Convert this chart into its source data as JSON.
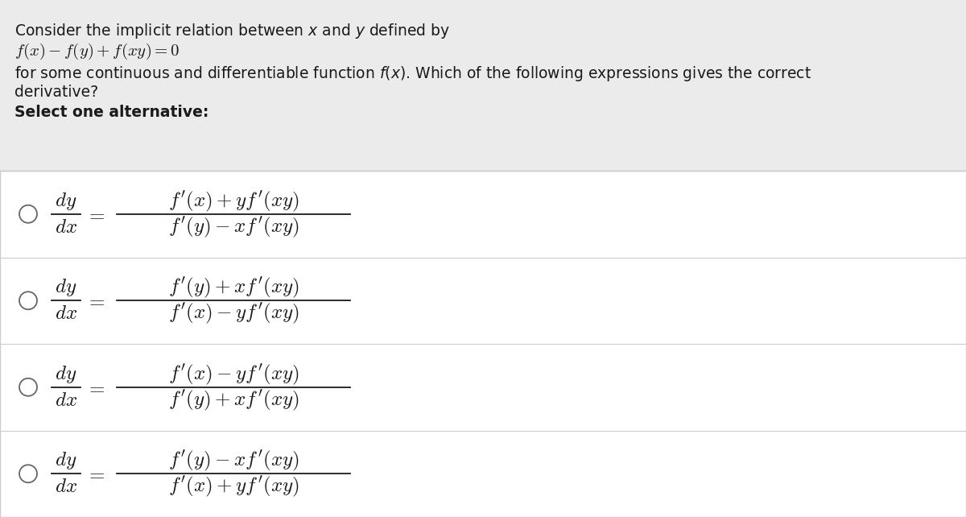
{
  "bg_color": "#ebebeb",
  "white_color": "#ffffff",
  "text_color": "#1a1a1a",
  "divider_color": "#cccccc",
  "circle_color": "#666666",
  "fig_width": 12.0,
  "fig_height": 6.42,
  "header": {
    "line1": "Consider the implicit relation between $x$ and $y$ defined by",
    "line2": "$f(x) - f(y) + f(xy) = 0$",
    "line3": "for some continuous and differentiable function $f(x)$. Which of the following expressions gives the correct",
    "line4": "derivative?",
    "line5_bold": "Select one alternative:"
  },
  "options": [
    {
      "num": "$f'(x) + yf'(xy)$",
      "den": "$f'(y) - xf'(xy)$"
    },
    {
      "num": "$f'(y) + xf'(xy)$",
      "den": "$f'(x) - yf'(xy)$"
    },
    {
      "num": "$f'(x) - yf'(xy)$",
      "den": "$f'(y) + xf'(xy)$"
    },
    {
      "num": "$f'(y) - xf'(xy)$",
      "den": "$f'(x) + yf'(xy)$"
    }
  ]
}
